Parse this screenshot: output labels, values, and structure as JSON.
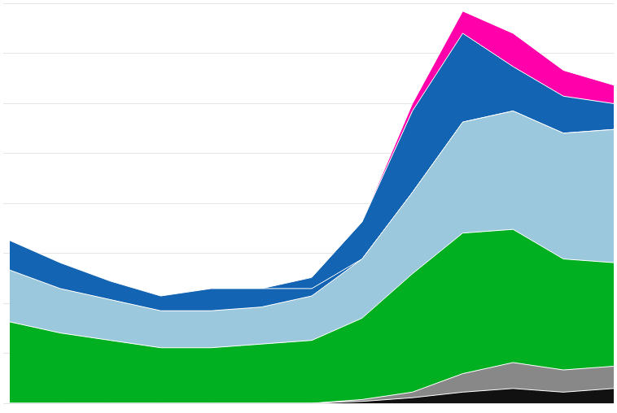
{
  "chart_data": {
    "type": "area",
    "stacked": true,
    "x": [
      0,
      1,
      2,
      3,
      4,
      5,
      6,
      7,
      8,
      9,
      10,
      11,
      12
    ],
    "series": [
      {
        "color": "#111111",
        "values": [
          0,
          0,
          0,
          0,
          0,
          0,
          0,
          0.5,
          1.5,
          3,
          4,
          3,
          4
        ]
      },
      {
        "color": "#888888",
        "values": [
          0,
          0,
          0,
          0,
          0,
          0,
          0,
          0.5,
          1.5,
          5,
          7,
          6,
          6
        ]
      },
      {
        "color": "#00b020",
        "values": [
          22,
          19,
          17,
          15,
          15,
          16,
          17,
          22,
          32,
          38,
          36,
          30,
          28
        ]
      },
      {
        "color": "#9bc8dc",
        "values": [
          14,
          12,
          11,
          10,
          10,
          10,
          12,
          16,
          22,
          30,
          32,
          34,
          36
        ]
      },
      {
        "color": "#1464b4",
        "values": [
          8,
          7,
          5,
          4,
          6,
          5,
          2,
          0,
          0,
          0,
          0,
          0,
          0
        ]
      },
      {
        "color": "#1464b4",
        "values": [
          0,
          0,
          0,
          0,
          0,
          0,
          3,
          10,
          22,
          24,
          12,
          10,
          7
        ]
      },
      {
        "color": "#ff00aa",
        "values": [
          0,
          0,
          0,
          0,
          0,
          0,
          0,
          0,
          2,
          6,
          9,
          7,
          5
        ]
      }
    ],
    "xlim": [
      0,
      12
    ],
    "ylim": [
      0,
      108.12
    ],
    "yticks": [
      0,
      13.515,
      27.03,
      40.545,
      54.06,
      67.575,
      81.09,
      94.605,
      108.12
    ],
    "grid": true,
    "tick_labels": false,
    "legend": false
  }
}
